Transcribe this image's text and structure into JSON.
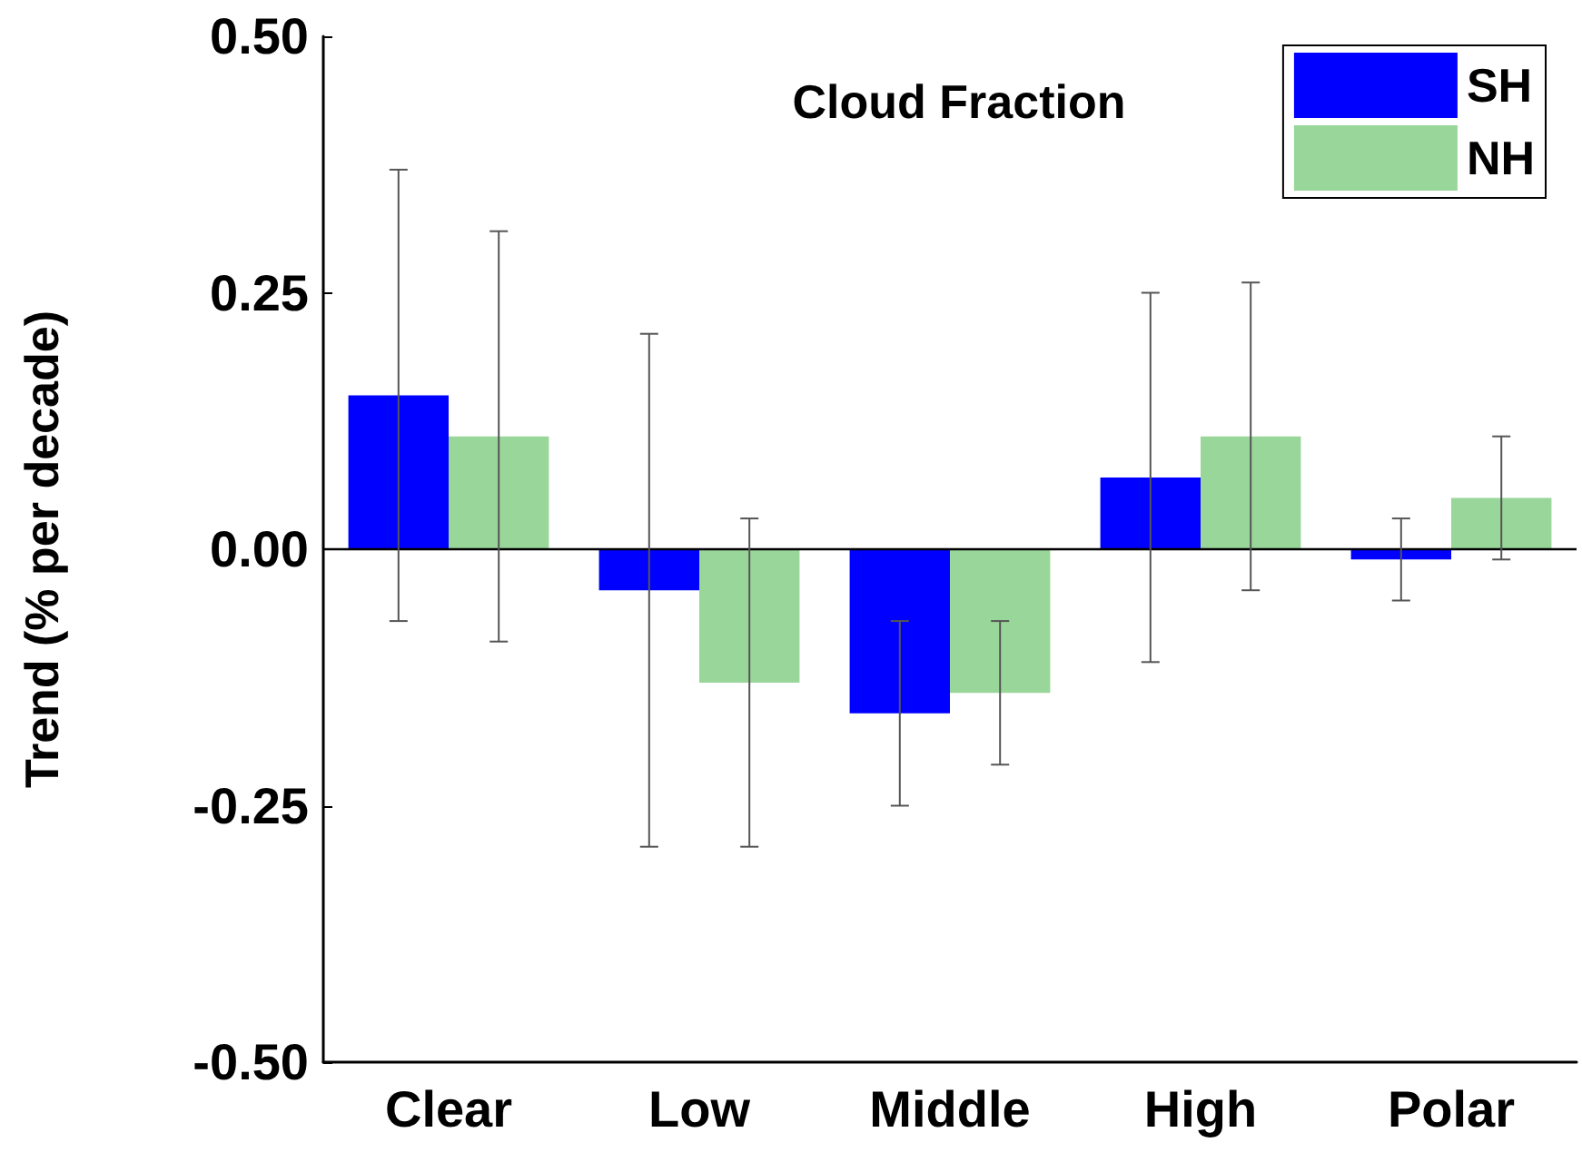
{
  "chart_data": {
    "type": "bar",
    "title": "Cloud Fraction",
    "ylabel": "Trend (% per decade)",
    "categories": [
      "Clear",
      "Low",
      "Middle",
      "High",
      "Polar"
    ],
    "series": [
      {
        "name": "SH",
        "color": "#0000ff",
        "values": [
          0.15,
          -0.04,
          -0.16,
          0.07,
          -0.01
        ],
        "errors": [
          [
            -0.07,
            0.37
          ],
          [
            -0.29,
            0.21
          ],
          [
            -0.25,
            -0.07
          ],
          [
            -0.11,
            0.25
          ],
          [
            -0.05,
            0.03
          ]
        ]
      },
      {
        "name": "NH",
        "color": "#99d699",
        "values": [
          0.11,
          -0.13,
          -0.14,
          0.11,
          0.05
        ],
        "errors": [
          [
            -0.09,
            0.31
          ],
          [
            -0.29,
            0.03
          ],
          [
            -0.21,
            -0.07
          ],
          [
            -0.04,
            0.26
          ],
          [
            -0.01,
            0.11
          ]
        ]
      }
    ],
    "ylim": [
      -0.5,
      0.5
    ],
    "yticks": [
      {
        "value": -0.5,
        "label": "-0.50"
      },
      {
        "value": -0.25,
        "label": "-0.25"
      },
      {
        "value": 0,
        "label": "0.00"
      },
      {
        "value": 0.25,
        "label": "0.25"
      },
      {
        "value": 0.5,
        "label": "0.50"
      }
    ],
    "ref_lines": [
      {
        "axis": "y",
        "value": 0,
        "label": null
      }
    ],
    "grid": false,
    "legend": "top right"
  }
}
